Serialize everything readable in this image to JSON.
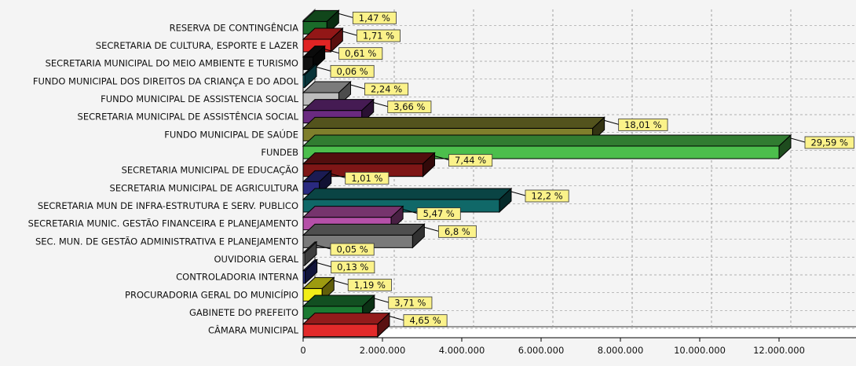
{
  "chart_data": {
    "type": "bar",
    "orientation": "horizontal",
    "style": "3d",
    "grid": true,
    "legend": "none",
    "xlim": [
      0,
      14000000
    ],
    "x_ticks": [
      {
        "value": 0,
        "label": "0"
      },
      {
        "value": 2000000,
        "label": "2.000.000"
      },
      {
        "value": 4000000,
        "label": "4.000.000"
      },
      {
        "value": 6000000,
        "label": "6.000.000"
      },
      {
        "value": 8000000,
        "label": "8.000.000"
      },
      {
        "value": 10000000,
        "label": "10.000.000"
      },
      {
        "value": 12000000,
        "label": "12.000.000"
      }
    ],
    "categories": [
      "RESERVA DE CONTINGÊNCIA",
      "SECRETARIA DE CULTURA, ESPORTE E LAZER",
      "SECRETARIA MUNICIPAL DO MEIO AMBIENTE E TURISMO",
      "FUNDO MUNICIPAL DOS DIREITOS DA CRIANÇA E DO ADOL",
      "FUNDO MUNICIPAL DE ASSISTENCIA SOCIAL",
      "SECRETARIA MUNICIPAL DE ASSISTÊNCIA SOCIAL",
      "FUNDO MUNICIPAL DE SAÚDE",
      "FUNDEB",
      "SECRETARIA MUNICIPAL DE EDUCAÇÃO",
      "SECRETARIA MUNICIPAL DE AGRICULTURA",
      "SECRETARIA MUN DE INFRA-ESTRUTURA E SERV. PUBLICO",
      "SECRETARIA MUNIC. GESTÃO FINANCEIRA E PLANEJAMENTO",
      "SEC. MUN. DE GESTÃO ADMINISTRATIVA E PLANEJAMENTO",
      "OUVIDORIA GERAL",
      "CONTROLADORIA INTERNA",
      "PROCURADORIA GERAL DO MUNICÍPIO",
      "GABINETE DO PREFEITO",
      "CÂMARA MUNICIPAL"
    ],
    "values": [
      600000,
      700000,
      250000,
      25000,
      900000,
      1480000,
      7300000,
      12000000,
      3020000,
      410000,
      4950000,
      2220000,
      2760000,
      20000,
      53000,
      480000,
      1500000,
      1880000
    ],
    "labels": [
      "1,47 %",
      "1,71 %",
      "0,61 %",
      "0,06 %",
      "2,24 %",
      "3,66 %",
      "18,01 %",
      "29,59 %",
      "7,44 %",
      "1,01 %",
      "12,2 %",
      "5,47 %",
      "6,8 %",
      "0,05 %",
      "0,13 %",
      "1,19 %",
      "3,71 %",
      "4,65 %"
    ],
    "colors": [
      "#1a6b2a",
      "#e02424",
      "#111111",
      "#16808c",
      "#bdbdbd",
      "#6a2a80",
      "#7f7f2c",
      "#4cbe4c",
      "#7e1616",
      "#2a2a80",
      "#106868",
      "#b550a8",
      "#7a7a7a",
      "#9a9a9a",
      "#2a3290",
      "#f2ee18",
      "#1c7a32",
      "#e22a2a"
    ]
  }
}
